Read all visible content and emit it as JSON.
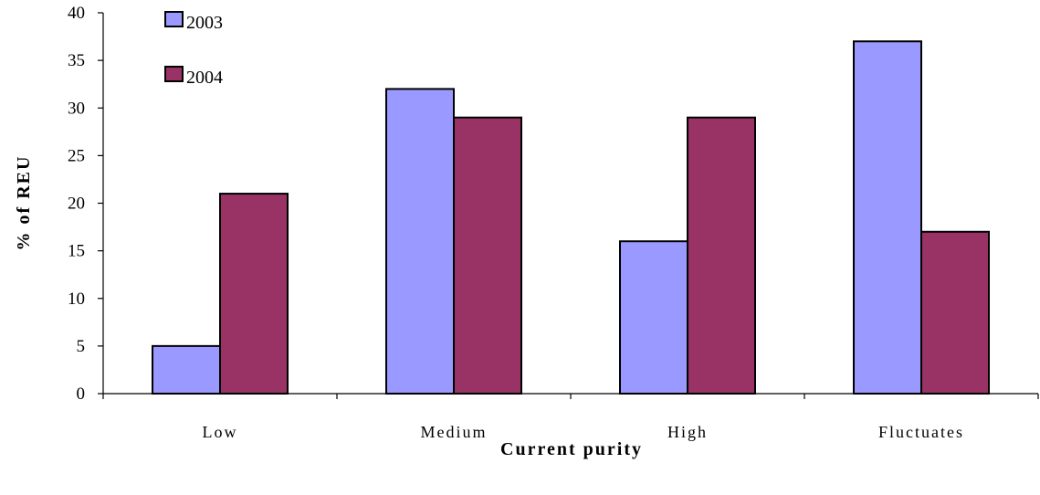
{
  "chart_data": {
    "type": "bar",
    "title": "",
    "xlabel": "Current purity",
    "ylabel": "% of REU",
    "categories": [
      "Low",
      "Medium",
      "High",
      "Fluctuates"
    ],
    "series": [
      {
        "name": "2003",
        "color": "#9999ff",
        "values": [
          5,
          32,
          16,
          37
        ]
      },
      {
        "name": "2004",
        "color": "#993366",
        "values": [
          21,
          29,
          29,
          17
        ]
      }
    ],
    "ylim": [
      0,
      40
    ],
    "yticks": [
      "0",
      "5",
      "10",
      "15",
      "20",
      "25",
      "30",
      "35",
      "40"
    ],
    "grid": false,
    "legend_position": "top-left"
  }
}
